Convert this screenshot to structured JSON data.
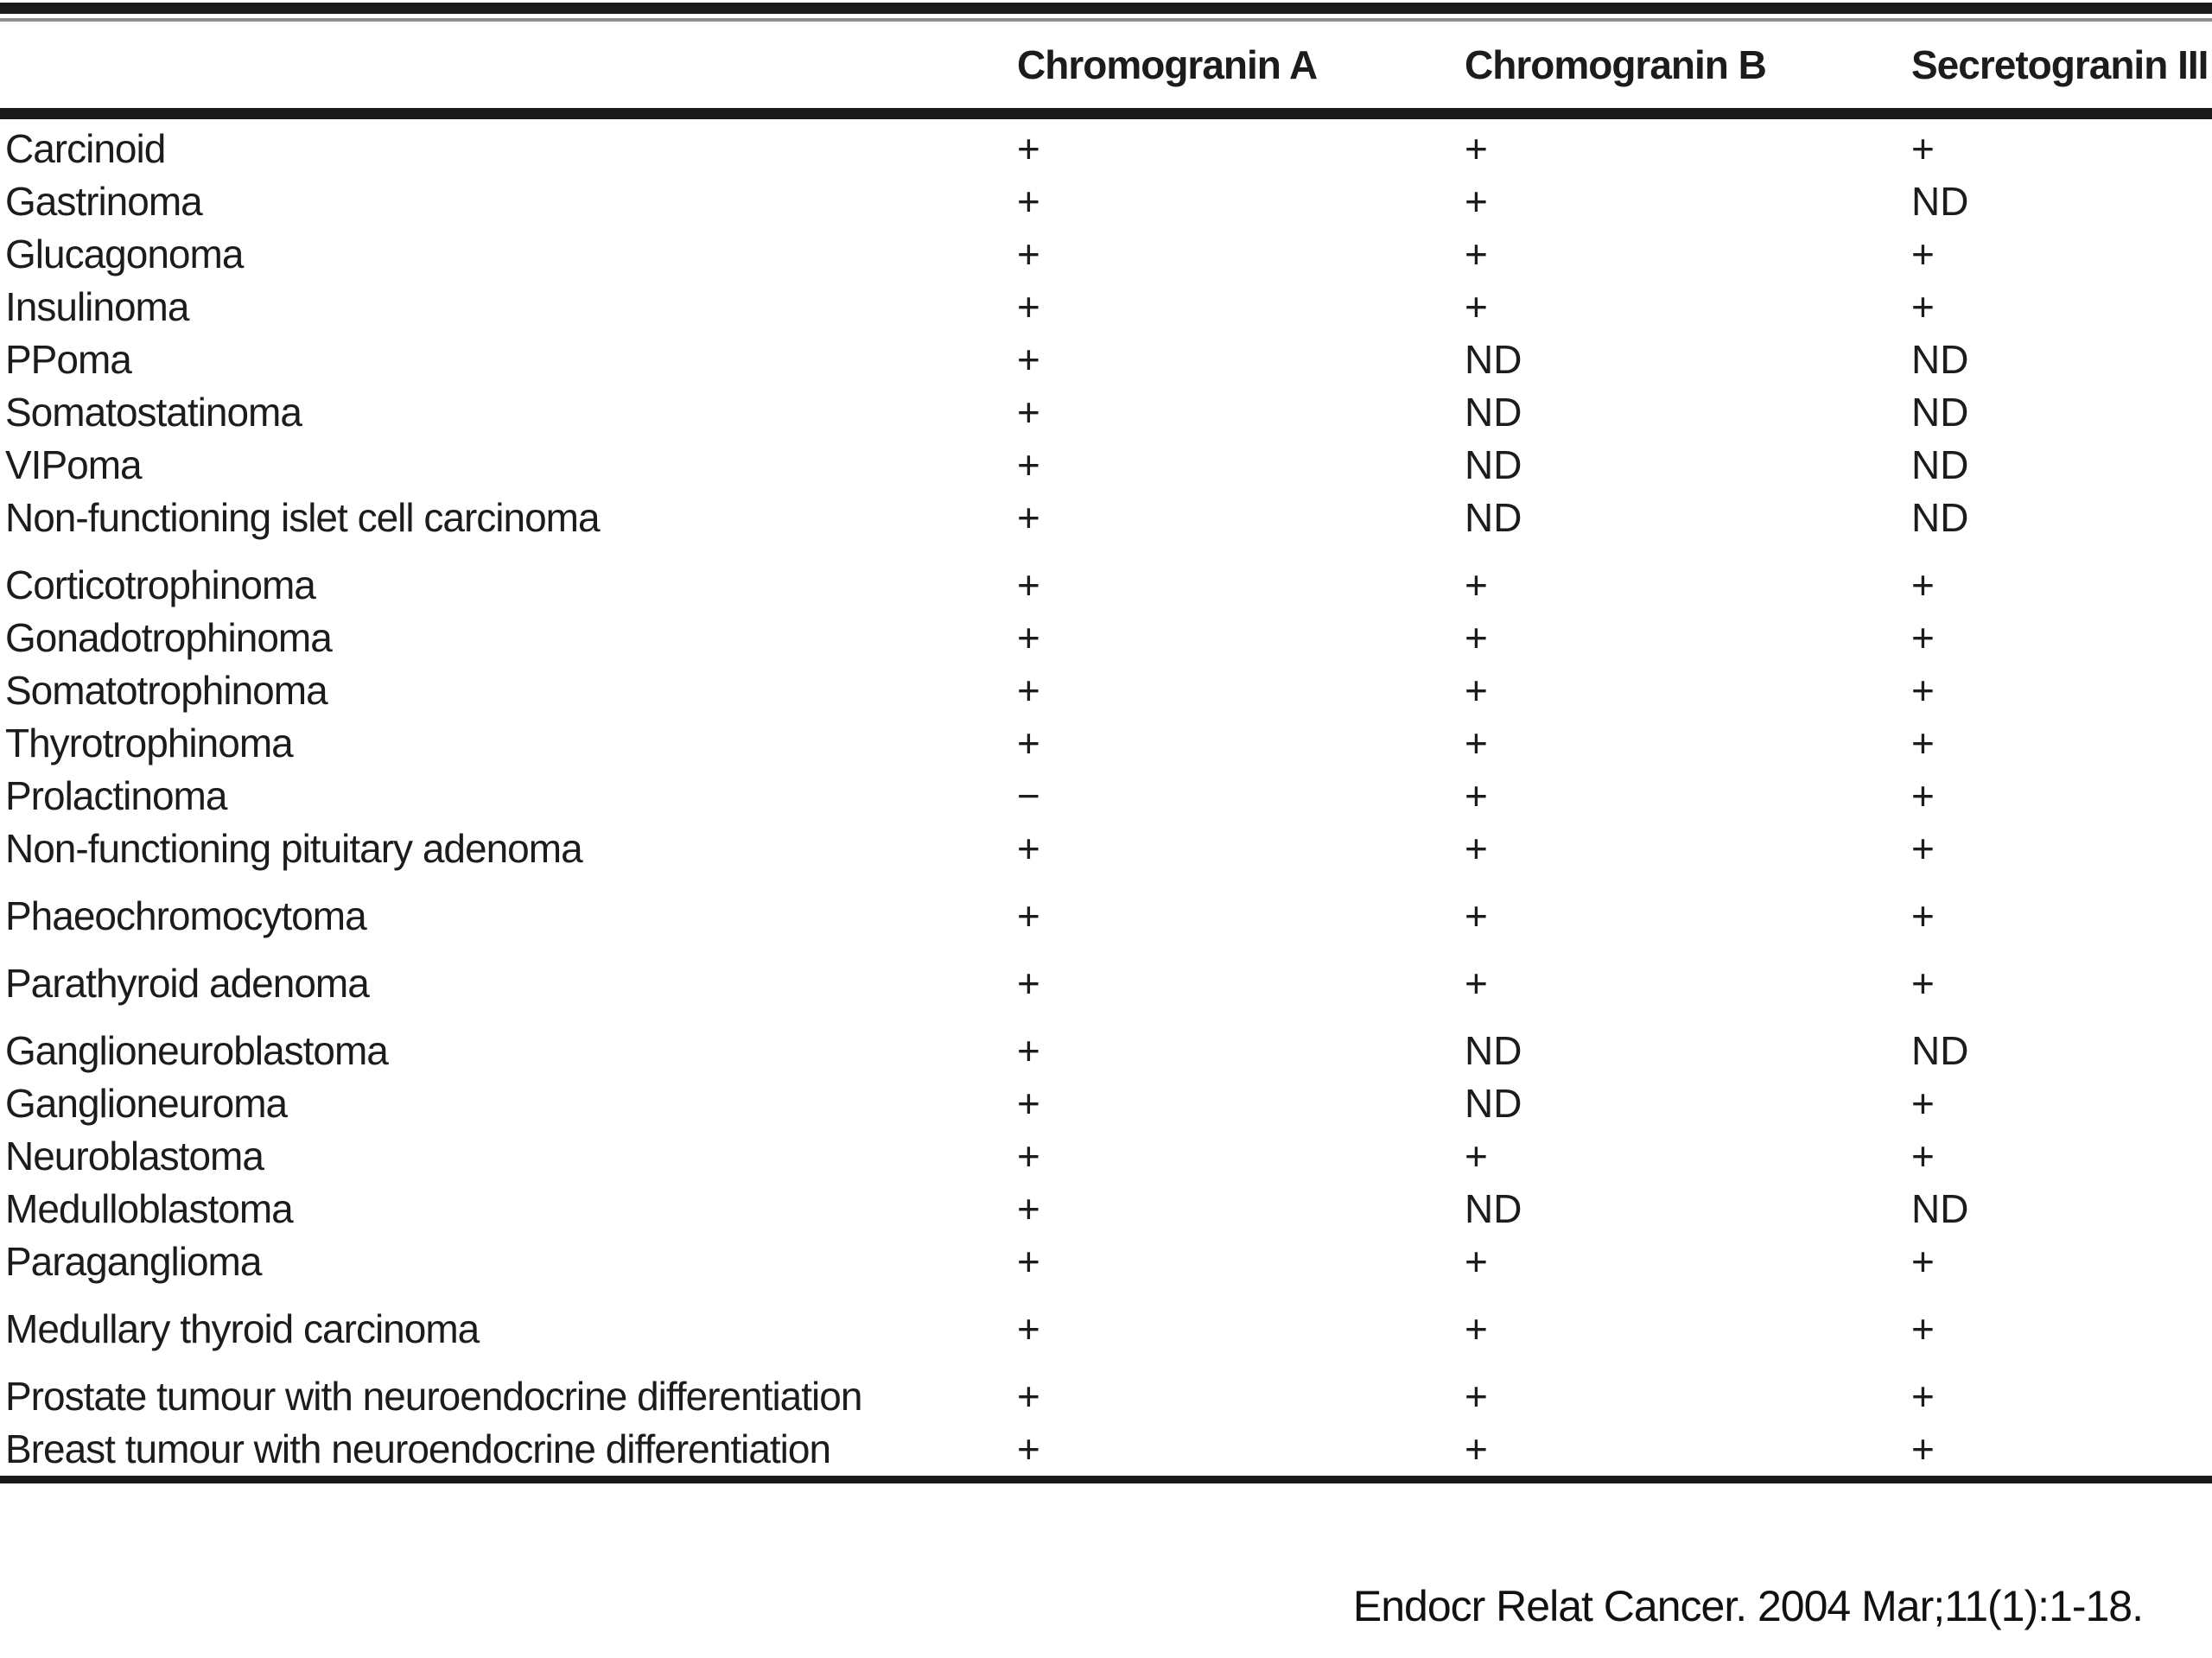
{
  "table": {
    "columns": [
      "Chromogranin A",
      "Chromogranin B",
      "Secretogranin III"
    ],
    "groups": [
      {
        "rows": [
          {
            "name": "Carcinoid",
            "a": "+",
            "b": "+",
            "s": "+"
          },
          {
            "name": "Gastrinoma",
            "a": "+",
            "b": "+",
            "s": "ND"
          },
          {
            "name": "Glucagonoma",
            "a": "+",
            "b": "+",
            "s": "+"
          },
          {
            "name": "Insulinoma",
            "a": "+",
            "b": "+",
            "s": "+"
          },
          {
            "name": "PPoma",
            "a": "+",
            "b": "ND",
            "s": "ND"
          },
          {
            "name": "Somatostatinoma",
            "a": "+",
            "b": "ND",
            "s": "ND"
          },
          {
            "name": "VIPoma",
            "a": "+",
            "b": "ND",
            "s": "ND"
          },
          {
            "name": "Non-functioning islet cell carcinoma",
            "a": "+",
            "b": "ND",
            "s": "ND"
          }
        ]
      },
      {
        "rows": [
          {
            "name": "Corticotrophinoma",
            "a": "+",
            "b": "+",
            "s": "+"
          },
          {
            "name": "Gonadotrophinoma",
            "a": "+",
            "b": "+",
            "s": "+"
          },
          {
            "name": "Somatotrophinoma",
            "a": "+",
            "b": "+",
            "s": "+"
          },
          {
            "name": "Thyrotrophinoma",
            "a": "+",
            "b": "+",
            "s": "+"
          },
          {
            "name": "Prolactinoma",
            "a": "−",
            "b": "+",
            "s": "+"
          },
          {
            "name": "Non-functioning pituitary adenoma",
            "a": "+",
            "b": "+",
            "s": "+"
          }
        ]
      },
      {
        "rows": [
          {
            "name": "Phaeochromocytoma",
            "a": "+",
            "b": "+",
            "s": "+"
          }
        ]
      },
      {
        "rows": [
          {
            "name": "Parathyroid adenoma",
            "a": "+",
            "b": "+",
            "s": "+"
          }
        ]
      },
      {
        "rows": [
          {
            "name": "Ganglioneuroblastoma",
            "a": "+",
            "b": "ND",
            "s": "ND"
          },
          {
            "name": "Ganglioneuroma",
            "a": "+",
            "b": "ND",
            "s": "+"
          },
          {
            "name": "Neuroblastoma",
            "a": "+",
            "b": "+",
            "s": "+"
          },
          {
            "name": "Medulloblastoma",
            "a": "+",
            "b": "ND",
            "s": "ND"
          },
          {
            "name": "Paraganglioma",
            "a": "+",
            "b": "+",
            "s": "+"
          }
        ]
      },
      {
        "rows": [
          {
            "name": "Medullary thyroid carcinoma",
            "a": "+",
            "b": "+",
            "s": "+"
          }
        ]
      },
      {
        "rows": [
          {
            "name": "Prostate tumour with neuroendocrine differentiation",
            "a": "+",
            "b": "+",
            "s": "+"
          },
          {
            "name": "Breast tumour with neuroendocrine differentiation",
            "a": "+",
            "b": "+",
            "s": "+"
          }
        ]
      }
    ]
  },
  "citation": "Endocr Relat Cancer. 2004 Mar;11(1):1-18.",
  "colors": {
    "text": "#1c1c1c",
    "rule": "#1a1a1a",
    "background": "#ffffff"
  }
}
